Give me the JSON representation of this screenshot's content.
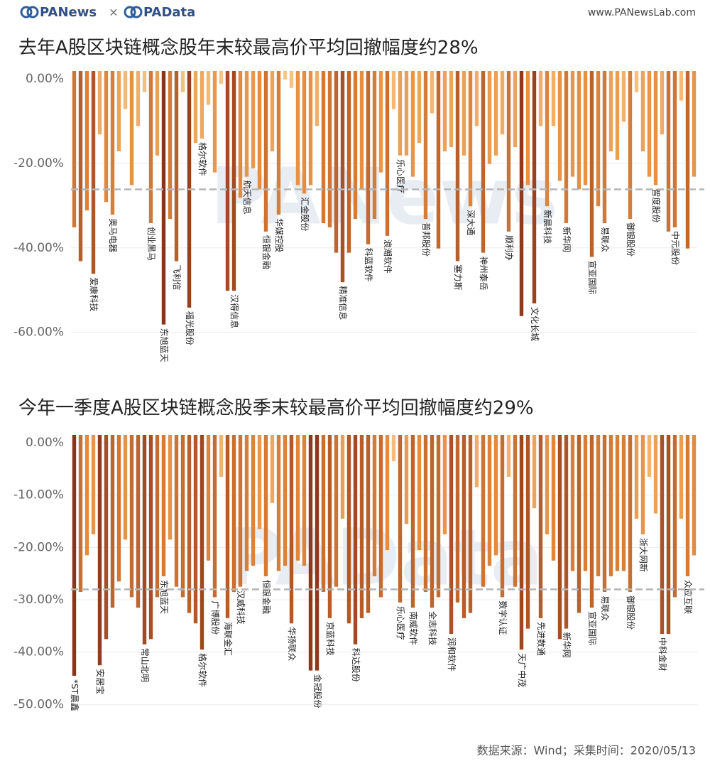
{
  "header": {
    "brands": [
      "PANews",
      "PAData"
    ],
    "separator": "×",
    "site": "www.PANewsLab.com"
  },
  "footer": "数据来源：Wind；采集时间：2020/05/13",
  "chart_data": [
    {
      "type": "bar",
      "title": "去年A股区块链概念股年末较最高价平均回撤幅度约28%",
      "watermark": "PANews",
      "categories": [
        null,
        null,
        null,
        "爱康科技",
        null,
        null,
        "奥马电器",
        null,
        null,
        null,
        null,
        null,
        "创业黑马",
        null,
        "东旭蓝天",
        null,
        "飞利信",
        null,
        "福光股份",
        null,
        "格尔软件",
        null,
        null,
        null,
        null,
        "汉得信息",
        null,
        "航天信息",
        null,
        null,
        "恒银金融",
        null,
        "华媒控股",
        null,
        null,
        null,
        "汇金股份",
        null,
        null,
        null,
        null,
        null,
        "精准信息",
        null,
        null,
        null,
        "科蓝软件",
        null,
        null,
        "浪潮软件",
        null,
        "乐心医疗",
        null,
        null,
        null,
        "普邦股份",
        null,
        null,
        null,
        null,
        "塞力斯",
        null,
        "深大通",
        null,
        "神州泰岳",
        null,
        null,
        null,
        "顺利办",
        null,
        null,
        null,
        "文化长城",
        null,
        "新晨科技",
        null,
        null,
        "新华网",
        null,
        null,
        null,
        "宣亚国际",
        null,
        "易联众",
        null,
        null,
        null,
        "御银股份",
        null,
        null,
        null,
        "智度股份",
        null,
        null,
        "中元股份",
        null,
        null,
        null
      ],
      "values": [
        -37,
        -45,
        -33,
        -48,
        -15,
        -31,
        -34,
        -19,
        -9,
        -27,
        -13,
        -5,
        -36,
        -20,
        -60,
        -35,
        -45,
        -5,
        -56,
        -17,
        -16,
        -8,
        -24,
        -3,
        -52,
        -52,
        -30,
        -25,
        -23,
        -28,
        -38,
        -19,
        -34,
        -2,
        -4,
        -27,
        -29,
        -27,
        -13,
        -36,
        -37,
        -43,
        -50,
        -43,
        -35,
        -28,
        -41,
        -35,
        -24,
        -39,
        -9,
        -20,
        -20,
        -25,
        -17,
        -35,
        -10,
        -42,
        -19,
        -18,
        -45,
        -20,
        -32,
        -13,
        -43,
        -22,
        -20,
        -15,
        -38,
        -18,
        -58,
        -27,
        -55,
        -13,
        -32,
        -13,
        -26,
        -36,
        -25,
        -28,
        -27,
        -44,
        -32,
        -36,
        -19,
        -21,
        -12,
        -35,
        -5,
        -19,
        -25,
        -27,
        -15,
        -38,
        -37,
        -7,
        -42,
        -25
      ],
      "colors": [
        "#f8cb8c",
        "#e48a3c",
        "#8b3419"
      ],
      "average": -28,
      "ylim": [
        -72,
        0
      ],
      "yticks": [
        {
          "value": 0,
          "label": "0.00%"
        },
        {
          "value": -20,
          "label": "-20.00%"
        },
        {
          "value": -40,
          "label": "-40.00%"
        },
        {
          "value": -60,
          "label": "-60.00%"
        }
      ],
      "grid": true
    },
    {
      "type": "bar",
      "title": "今年一季度A股区块链概念股季末较最高价平均回撤幅度约29%",
      "watermark": "PAData",
      "categories": [
        "*ST晨鑫",
        null,
        null,
        null,
        "安居宝",
        null,
        null,
        null,
        null,
        null,
        null,
        "常山北明",
        null,
        null,
        "东旭蓝天",
        null,
        null,
        null,
        null,
        null,
        "格尔软件",
        null,
        "广博股份",
        null,
        "海联金汇",
        null,
        "汉威科技",
        null,
        null,
        null,
        "恒银金融",
        null,
        null,
        null,
        "华扬联众",
        null,
        null,
        null,
        "金冠股份",
        null,
        "京蓝科技",
        null,
        null,
        null,
        "科达股份",
        null,
        null,
        null,
        null,
        null,
        null,
        "乐心医疗",
        null,
        "南威软件",
        null,
        null,
        "全志科技",
        null,
        null,
        "润和软件",
        null,
        null,
        null,
        null,
        null,
        null,
        null,
        "数字认证",
        null,
        null,
        "天广中茂",
        null,
        null,
        "先进数通",
        null,
        null,
        null,
        "新华网",
        null,
        null,
        null,
        "宣亚国际",
        null,
        "易联众",
        null,
        null,
        null,
        "御银股份",
        null,
        "浙大网新",
        null,
        null,
        "中科金财",
        null,
        null,
        null,
        "众应互联",
        null
      ],
      "values": [
        -46,
        -30,
        -23,
        -19,
        -44,
        -39,
        -33,
        -28,
        -20,
        -31,
        -33,
        -40,
        -39,
        -31,
        -27,
        -20,
        -29,
        -31,
        -34,
        -36,
        -41,
        -24,
        -31,
        -8,
        -35,
        -30,
        -29,
        -26,
        -25,
        -18,
        -27,
        -13,
        -26,
        -25,
        -36,
        -24,
        -25,
        -45,
        -45,
        -30,
        -35,
        -29,
        -16,
        -36,
        -40,
        -35,
        -34,
        -27,
        -31,
        -22,
        -5,
        -32,
        -17,
        -33,
        -22,
        -30,
        -33,
        -31,
        -19,
        -38,
        -32,
        -35,
        -34,
        -10,
        -29,
        -25,
        -23,
        -31,
        -8,
        -29,
        -41,
        -37,
        -14,
        -35,
        -19,
        -24,
        -39,
        -37,
        -26,
        -34,
        -26,
        -33,
        -27,
        -30,
        -27,
        -26,
        -26,
        -30,
        -16,
        -19,
        -8,
        -15,
        -38,
        -38,
        -31,
        -16,
        -27,
        -23
      ],
      "colors": [
        "#f8cb8c",
        "#e48a3c",
        "#8b3419"
      ],
      "average": -29.5,
      "ylim": [
        -57,
        0
      ],
      "yticks": [
        {
          "value": 0,
          "label": "0.00%"
        },
        {
          "value": -10,
          "label": "-10.00%"
        },
        {
          "value": -20,
          "label": "-20.00%"
        },
        {
          "value": -30,
          "label": "-30.00%"
        },
        {
          "value": -40,
          "label": "-40.00%"
        },
        {
          "value": -50,
          "label": "-50.00%"
        }
      ],
      "grid": true
    }
  ]
}
